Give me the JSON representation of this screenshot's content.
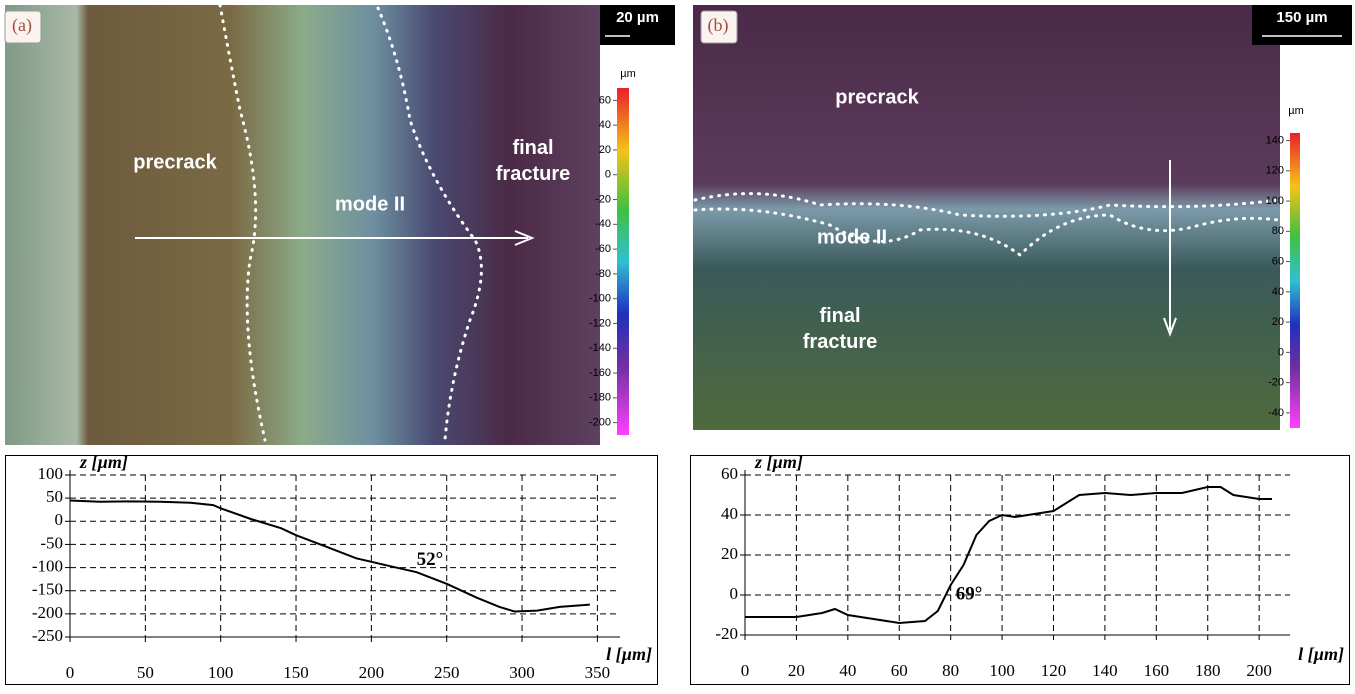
{
  "chart_data": [
    {
      "type": "line",
      "ylabel": "z [µm]",
      "xlabel": "l [µm]",
      "annotation": "52°",
      "annotation_at": [
        230,
        -85
      ],
      "x": [
        0,
        20,
        40,
        60,
        80,
        95,
        100,
        120,
        140,
        150,
        170,
        190,
        210,
        230,
        250,
        270,
        285,
        295,
        310,
        325,
        345
      ],
      "series": [
        {
          "color": "#000000",
          "values": [
            45,
            42,
            43,
            42,
            40,
            35,
            28,
            5,
            -15,
            -30,
            -55,
            -80,
            -95,
            -110,
            -135,
            -165,
            -185,
            -195,
            -193,
            -185,
            -180
          ]
        }
      ],
      "xlim": [
        0,
        365
      ],
      "ylim": [
        -250,
        100
      ],
      "xticks": [
        0,
        50,
        100,
        150,
        200,
        250,
        300,
        350
      ],
      "yticks": [
        -250,
        -200,
        -150,
        -100,
        -50,
        0,
        50,
        100
      ],
      "grid": true
    },
    {
      "type": "line",
      "ylabel": "z [µm]",
      "xlabel": "l [µm]",
      "annotation": "69°",
      "annotation_at": [
        82,
        0
      ],
      "x": [
        0,
        20,
        30,
        35,
        40,
        50,
        60,
        70,
        75,
        80,
        85,
        90,
        95,
        100,
        105,
        110,
        120,
        130,
        140,
        150,
        160,
        170,
        180,
        185,
        190,
        200,
        205
      ],
      "series": [
        {
          "color": "#000000",
          "values": [
            -11,
            -11,
            -9,
            -7,
            -10,
            -12,
            -14,
            -13,
            -8,
            5,
            15,
            30,
            37,
            40,
            39,
            40,
            42,
            50,
            51,
            50,
            51,
            51,
            54,
            54,
            50,
            48,
            48
          ]
        }
      ],
      "xlim": [
        0,
        212
      ],
      "ylim": [
        -20,
        60
      ],
      "xticks": [
        0,
        20,
        40,
        60,
        80,
        100,
        120,
        140,
        160,
        180,
        200
      ],
      "yticks": [
        -20,
        0,
        20,
        40,
        60
      ],
      "grid": true
    }
  ],
  "images": [
    {
      "panel": "(a)",
      "scale": "20 µm",
      "labels": [
        "precrack",
        "mode II",
        "final fracture"
      ],
      "colorbar": {
        "unit": "µm",
        "lim": [
          -210,
          70
        ],
        "ticks": [
          60,
          40,
          20,
          0,
          -20,
          -40,
          -60,
          -80,
          -100,
          -120,
          -140,
          -160,
          -180,
          -200
        ]
      }
    },
    {
      "panel": "(b)",
      "scale": "150 µm",
      "labels": [
        "precrack",
        "mode II",
        "final fracture"
      ],
      "colorbar": {
        "unit": "µm",
        "lim": [
          -50,
          145
        ],
        "ticks": [
          140,
          120,
          100,
          80,
          60,
          40,
          20,
          0,
          -20,
          -40
        ]
      }
    }
  ]
}
